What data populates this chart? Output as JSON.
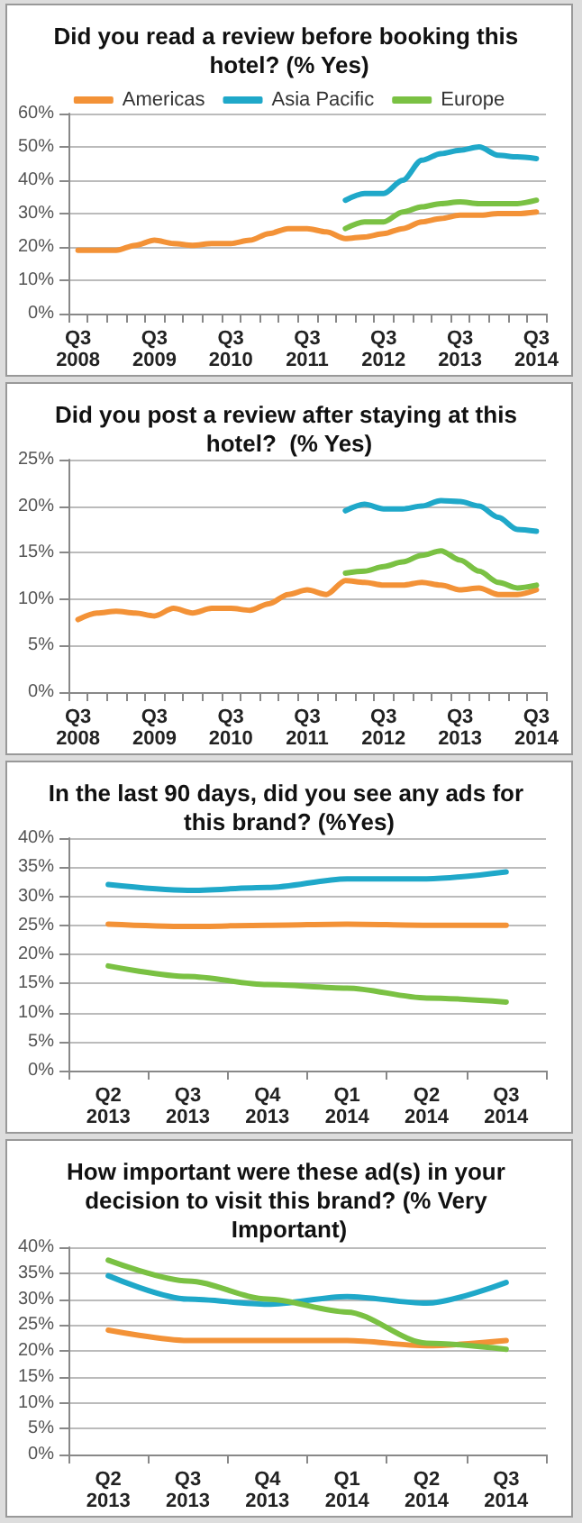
{
  "chart_data": [
    {
      "type": "line",
      "title": "Did you read a review before booking this hotel? (% Yes)",
      "categories": [
        "Q3 2008",
        null,
        null,
        null,
        "Q3 2009",
        null,
        null,
        null,
        "Q3 2010",
        null,
        null,
        null,
        "Q3 2011",
        null,
        null,
        null,
        "Q3 2012",
        null,
        null,
        null,
        "Q3 2013",
        null,
        null,
        null,
        "Q3 2014"
      ],
      "series": [
        {
          "name": "Americas",
          "color": "#f39237",
          "values": [
            19,
            19,
            19,
            20.5,
            22,
            21,
            20.5,
            21,
            21,
            22,
            24,
            25.5,
            25.5,
            24.5,
            22.5,
            23,
            24,
            25.5,
            27.5,
            28.5,
            29.5,
            29.5,
            30,
            30,
            30.5
          ]
        },
        {
          "name": "Asia Pacific",
          "color": "#1fa8c9",
          "values": [
            null,
            null,
            null,
            null,
            null,
            null,
            null,
            null,
            null,
            null,
            null,
            null,
            null,
            null,
            34,
            36,
            36,
            40,
            46,
            48,
            49,
            50,
            47.5,
            47,
            46.5
          ]
        },
        {
          "name": "Europe",
          "color": "#7ac143",
          "values": [
            null,
            null,
            null,
            null,
            null,
            null,
            null,
            null,
            null,
            null,
            null,
            null,
            null,
            null,
            25.5,
            27.5,
            27.5,
            30.5,
            32,
            33,
            33.5,
            33,
            33,
            33,
            34
          ]
        }
      ],
      "ylim": [
        0,
        60
      ],
      "yticks": [
        {
          "value": 0,
          "label": "0%"
        },
        {
          "value": 10,
          "label": "10%"
        },
        {
          "value": 20,
          "label": "20%"
        },
        {
          "value": 30,
          "label": "30%"
        },
        {
          "value": 40,
          "label": "40%"
        },
        {
          "value": 50,
          "label": "50%"
        },
        {
          "value": 60,
          "label": "60%"
        }
      ],
      "grid": "y",
      "legend": "top",
      "marker": "none",
      "line_style": "solid"
    },
    {
      "type": "line",
      "title": "Did you post a review after staying at this hotel?  (% Yes)",
      "categories": [
        "Q3 2008",
        null,
        null,
        null,
        "Q3 2009",
        null,
        null,
        null,
        "Q3 2010",
        null,
        null,
        null,
        "Q3 2011",
        null,
        null,
        null,
        "Q3 2012",
        null,
        null,
        null,
        "Q3 2013",
        null,
        null,
        null,
        "Q3 2014"
      ],
      "series": [
        {
          "color": "#f39237",
          "values": [
            7.8,
            8.5,
            8.7,
            8.5,
            8.2,
            9,
            8.5,
            9,
            9,
            8.8,
            9.5,
            10.5,
            11,
            10.5,
            12,
            11.8,
            11.5,
            11.5,
            11.8,
            11.5,
            11,
            11.2,
            10.5,
            10.5,
            11
          ]
        },
        {
          "color": "#1fa8c9",
          "values": [
            null,
            null,
            null,
            null,
            null,
            null,
            null,
            null,
            null,
            null,
            null,
            null,
            null,
            null,
            19.5,
            20.2,
            19.7,
            19.7,
            20,
            20.6,
            20.5,
            20,
            18.8,
            17.5,
            17.3
          ]
        },
        {
          "color": "#7ac143",
          "values": [
            null,
            null,
            null,
            null,
            null,
            null,
            null,
            null,
            null,
            null,
            null,
            null,
            null,
            null,
            12.8,
            13,
            13.5,
            14,
            14.7,
            15.2,
            14.2,
            13,
            11.8,
            11.2,
            11.5
          ]
        }
      ],
      "ylim": [
        0,
        25
      ],
      "yticks": [
        {
          "value": 0,
          "label": "0%"
        },
        {
          "value": 5,
          "label": "5%"
        },
        {
          "value": 10,
          "label": "10%"
        },
        {
          "value": 15,
          "label": "15%"
        },
        {
          "value": 20,
          "label": "20%"
        },
        {
          "value": 25,
          "label": "25%"
        }
      ],
      "grid": "y",
      "marker": "none",
      "line_style": "solid"
    },
    {
      "type": "line",
      "title": "In the last 90 days, did you see any ads for this brand? (%Yes)",
      "categories": [
        "Q2 2013",
        "Q3 2013",
        "Q4 2013",
        "Q1 2014",
        "Q2 2014",
        "Q3 2014"
      ],
      "series": [
        {
          "color": "#1fa8c9",
          "values": [
            32,
            31,
            31.5,
            33,
            33,
            34.2
          ]
        },
        {
          "color": "#f39237",
          "values": [
            25.2,
            24.8,
            25,
            25.2,
            25,
            25
          ]
        },
        {
          "color": "#7ac143",
          "values": [
            18,
            16.2,
            14.8,
            14.2,
            12.5,
            11.8
          ]
        }
      ],
      "ylim": [
        0,
        40
      ],
      "yticks": [
        {
          "value": 0,
          "label": "0%"
        },
        {
          "value": 5,
          "label": "5%"
        },
        {
          "value": 10,
          "label": "10%"
        },
        {
          "value": 15,
          "label": "15%"
        },
        {
          "value": 20,
          "label": "20%"
        },
        {
          "value": 25,
          "label": "25%"
        },
        {
          "value": 30,
          "label": "30%"
        },
        {
          "value": 35,
          "label": "35%"
        },
        {
          "value": 40,
          "label": "40%"
        }
      ],
      "grid": "y",
      "marker": "none",
      "line_style": "solid"
    },
    {
      "type": "line",
      "title": "How important were these ad(s) in your decision to visit this brand? (% Very Important)",
      "categories": [
        "Q2 2013",
        "Q3 2013",
        "Q4 2013",
        "Q1 2014",
        "Q2 2014",
        "Q3 2014"
      ],
      "series": [
        {
          "color": "#f39237",
          "values": [
            24,
            22,
            22,
            22,
            21,
            22
          ]
        },
        {
          "color": "#1fa8c9",
          "values": [
            34.5,
            30,
            29,
            30.5,
            29.2,
            33.2
          ]
        },
        {
          "color": "#7ac143",
          "values": [
            37.5,
            33.5,
            30,
            27.5,
            21.5,
            20.3
          ]
        }
      ],
      "ylim": [
        0,
        40
      ],
      "yticks": [
        {
          "value": 0,
          "label": "0%"
        },
        {
          "value": 5,
          "label": "5%"
        },
        {
          "value": 10,
          "label": "10%"
        },
        {
          "value": 15,
          "label": "15%"
        },
        {
          "value": 20,
          "label": "20%"
        },
        {
          "value": 25,
          "label": "25%"
        },
        {
          "value": 30,
          "label": "30%"
        },
        {
          "value": 35,
          "label": "35%"
        },
        {
          "value": 40,
          "label": "40%"
        }
      ],
      "grid": "y",
      "marker": "none",
      "line_style": "solid"
    }
  ]
}
